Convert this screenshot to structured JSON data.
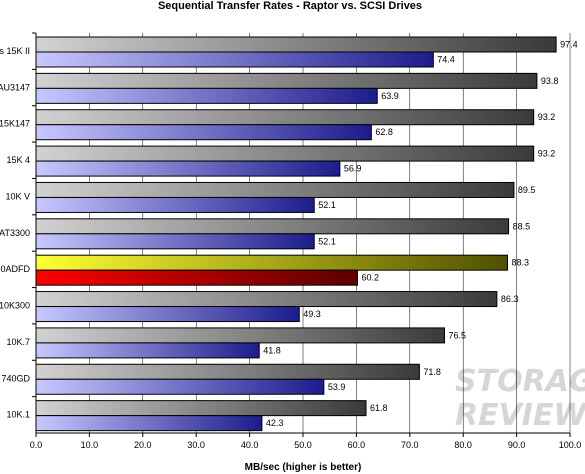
{
  "chart_data": {
    "type": "bar",
    "orientation": "horizontal",
    "title": "Sequential Transfer Rates - Raptor vs. SCSI Drives",
    "xlabel": "MB/sec (higher is better)",
    "ylabel": "",
    "xlim": [
      0,
      100
    ],
    "xticks": [
      "0.0",
      "10.0",
      "20.0",
      "30.0",
      "40.0",
      "50.0",
      "60.0",
      "70.0",
      "80.0",
      "90.0",
      "100.0"
    ],
    "grid": "vertical",
    "legend": "none",
    "categories": [
      "s 15K II",
      "AU3147",
      "15K147",
      "15K 4",
      "10K V",
      "AT3300",
      "0ADFD",
      "10K300",
      "10K.7",
      "740GD",
      "10K.1"
    ],
    "series": [
      {
        "values": [
          97.4,
          93.8,
          93.2,
          93.2,
          89.5,
          88.5,
          88.3,
          86.3,
          76.5,
          71.8,
          61.8
        ]
      },
      {
        "values": [
          74.4,
          63.9,
          62.8,
          56.9,
          52.1,
          52.1,
          60.2,
          49.3,
          41.8,
          53.9,
          42.3
        ]
      }
    ],
    "value_labels": [
      [
        "97.4",
        "93.8",
        "93.2",
        "93.2",
        "89.5",
        "88.5",
        "88.3",
        "86.3",
        "76.5",
        "71.8",
        "61.8"
      ],
      [
        "74.4",
        "63.9",
        "62.8",
        "56.9",
        "52.1",
        "52.1",
        "60.2",
        "49.3",
        "41.8",
        "53.9",
        "42.3"
      ]
    ],
    "highlight_index": 6,
    "colors": {
      "series1_light": "#d2d2d2",
      "series1_dark": "#3a3a3a",
      "series2_light": "#c8c8ff",
      "series2_dark": "#1c1c8c",
      "highlight1_light": "#ffff33",
      "highlight1_dark": "#505000",
      "highlight2_light": "#ff0000",
      "highlight2_dark": "#5a0000",
      "grid": "#000000"
    }
  },
  "watermark": {
    "line1": "STORAGE",
    "line2": "REVIEW"
  }
}
